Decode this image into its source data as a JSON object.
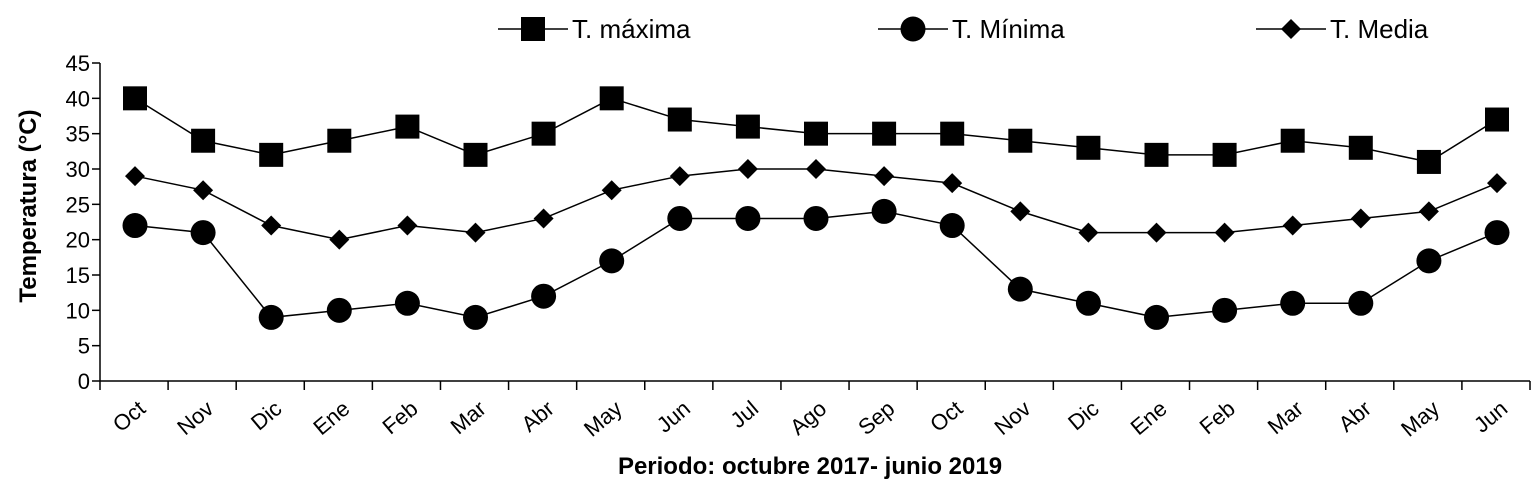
{
  "chart_data": {
    "type": "line",
    "title": "",
    "xlabel": "Periodo: octubre 2017- junio 2019",
    "ylabel": "Temperatura (°C)",
    "ylim": [
      0,
      45
    ],
    "yticks": [
      0,
      5,
      10,
      15,
      20,
      25,
      30,
      35,
      40,
      45
    ],
    "grid": false,
    "legend_position": "top",
    "categories": [
      "Oct",
      "Nov",
      "Dic",
      "Ene",
      "Feb",
      "Mar",
      "Abr",
      "May",
      "Jun",
      "Jul",
      "Ago",
      "Sep",
      "Oct",
      "Nov",
      "Dic",
      "Ene",
      "Feb",
      "Mar",
      "Abr",
      "May",
      "Jun"
    ],
    "series": [
      {
        "name": "T. máxima",
        "marker": "square",
        "color": "#000000",
        "values": [
          40,
          34,
          32,
          34,
          36,
          32,
          35,
          40,
          37,
          36,
          35,
          35,
          35,
          34,
          33,
          32,
          32,
          34,
          33,
          31,
          37
        ]
      },
      {
        "name": "T. Mínima",
        "marker": "circle",
        "color": "#000000",
        "values": [
          22,
          21,
          9,
          10,
          11,
          9,
          12,
          17,
          23,
          23,
          23,
          24,
          22,
          13,
          11,
          9,
          10,
          11,
          11,
          17,
          21
        ]
      },
      {
        "name": "T. Media",
        "marker": "diamond",
        "color": "#000000",
        "values": [
          29,
          27,
          22,
          20,
          22,
          21,
          23,
          27,
          29,
          30,
          30,
          29,
          28,
          24,
          21,
          21,
          21,
          22,
          23,
          24,
          28
        ]
      }
    ]
  }
}
